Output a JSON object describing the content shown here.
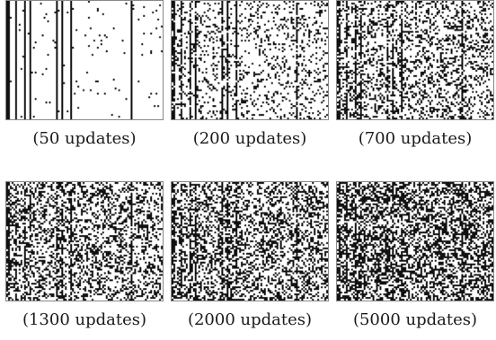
{
  "figure": {
    "panels": [
      {
        "caption": "(50 updates)",
        "updates": 50
      },
      {
        "caption": "(200 updates)",
        "updates": 200
      },
      {
        "caption": "(700 updates)",
        "updates": 700
      },
      {
        "caption": "(1300 updates)",
        "updates": 1300
      },
      {
        "caption": "(2000 updates)",
        "updates": 2000
      },
      {
        "caption": "(5000 updates)",
        "updates": 5000
      }
    ]
  }
}
